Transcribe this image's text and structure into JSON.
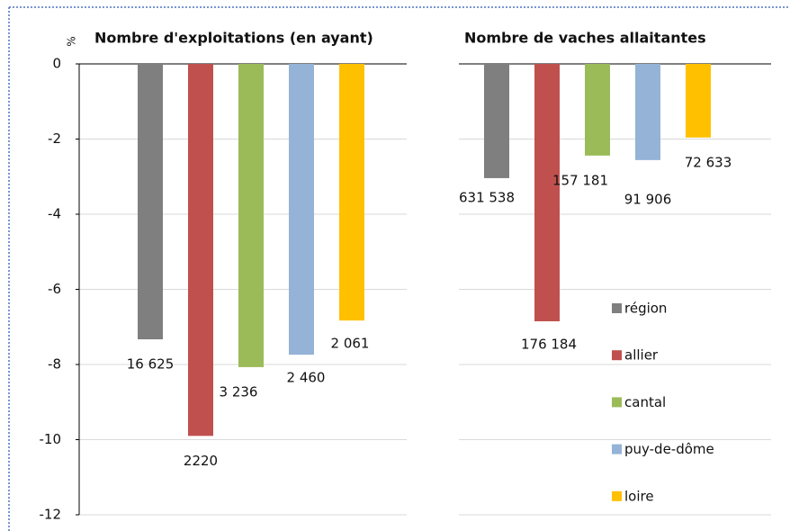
{
  "chart_data": [
    {
      "type": "bar",
      "title": "Nombre d'exploitations (en ayant)",
      "ylabel": "%",
      "categories": [
        "région",
        "allier",
        "cantal",
        "puy-de-dôme",
        "loire"
      ],
      "values": [
        -7.33,
        -9.9,
        -8.07,
        -7.74,
        -6.83
      ],
      "annotations": [
        "16 625",
        "2220",
        "3 236",
        "2 460",
        "2 061"
      ],
      "colors": [
        "#7f7f7f",
        "#c0504d",
        "#9bbb59",
        "#95b3d7",
        "#ffc000"
      ],
      "ylim": [
        -12,
        0
      ],
      "yticks": [
        -12,
        -10,
        -8,
        -6,
        -4,
        -2,
        0
      ],
      "grid": true
    },
    {
      "type": "bar",
      "title": "Nombre de vaches allaitantes",
      "categories": [
        "région",
        "allier",
        "cantal",
        "puy-de-dôme",
        "loire"
      ],
      "values": [
        -3.04,
        -6.85,
        -2.44,
        -2.56,
        -1.96
      ],
      "annotations": [
        "631 538",
        "176 184",
        "157 181",
        "91 906",
        "72 633"
      ],
      "colors": [
        "#7f7f7f",
        "#c0504d",
        "#9bbb59",
        "#95b3d7",
        "#ffc000"
      ],
      "ylim": [
        -12,
        0
      ],
      "yticks": [
        -12,
        -10,
        -8,
        -6,
        -4,
        -2,
        0
      ],
      "grid": true
    }
  ]
}
